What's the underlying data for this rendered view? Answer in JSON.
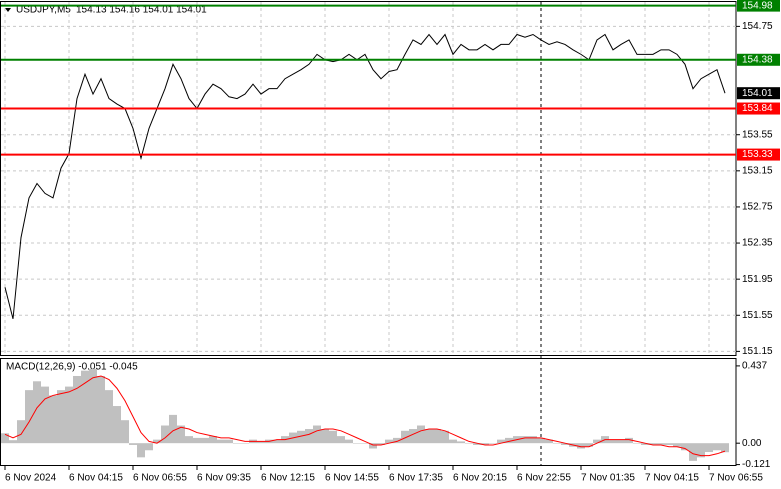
{
  "chart_data": [
    {
      "type": "line",
      "title": "USDJPY,M5",
      "subtitle": "154.13 154.16 154.01 154.01",
      "color": "#000000",
      "categories": [
        "6 Nov 2024",
        null,
        null,
        null,
        null,
        null,
        null,
        null,
        "6 Nov 04:15",
        null,
        null,
        null,
        null,
        null,
        null,
        null,
        "6 Nov 06:55",
        null,
        null,
        null,
        null,
        null,
        null,
        null,
        "6 Nov 09:35",
        null,
        null,
        null,
        null,
        null,
        null,
        null,
        "6 Nov 12:15",
        null,
        null,
        null,
        null,
        null,
        null,
        null,
        "6 Nov 14:55",
        null,
        null,
        null,
        null,
        null,
        null,
        null,
        "6 Nov 17:35",
        null,
        null,
        null,
        null,
        null,
        null,
        null,
        "6 Nov 20:15",
        null,
        null,
        null,
        null,
        null,
        null,
        null,
        "6 Nov 22:55",
        null,
        null,
        null,
        null,
        null,
        null,
        null,
        "7 Nov 01:35",
        null,
        null,
        null,
        null,
        null,
        null,
        null,
        "7 Nov 04:15",
        null,
        null,
        null,
        null,
        null,
        null,
        null,
        "7 Nov 06:55",
        null,
        null
      ],
      "values": [
        151.86,
        151.51,
        152.41,
        152.85,
        153.01,
        152.9,
        152.85,
        153.18,
        153.34,
        153.95,
        154.22,
        154.0,
        154.17,
        153.95,
        153.89,
        153.84,
        153.62,
        153.29,
        153.62,
        153.84,
        154.06,
        154.33,
        154.17,
        153.95,
        153.84,
        154.0,
        154.11,
        154.06,
        153.97,
        153.95,
        154.0,
        154.11,
        154.0,
        154.06,
        154.06,
        154.17,
        154.22,
        154.27,
        154.33,
        154.44,
        154.38,
        154.36,
        154.38,
        154.44,
        154.38,
        154.44,
        154.27,
        154.17,
        154.25,
        154.27,
        154.44,
        154.6,
        154.55,
        154.66,
        154.55,
        154.66,
        154.44,
        154.55,
        154.49,
        154.49,
        154.55,
        154.49,
        154.55,
        154.55,
        154.66,
        154.63,
        154.66,
        154.6,
        154.55,
        154.58,
        154.55,
        154.49,
        154.44,
        154.38,
        154.6,
        154.66,
        154.49,
        154.55,
        154.6,
        154.44,
        154.44,
        154.44,
        154.49,
        154.49,
        154.44,
        154.33,
        154.06,
        154.17,
        154.22,
        154.27,
        154.01
      ],
      "ylim": [
        151.11,
        155.02
      ],
      "yticks": [
        151.15,
        151.55,
        151.95,
        152.35,
        152.75,
        153.15,
        153.55,
        154.75
      ],
      "grid": true,
      "levels": [
        {
          "value": 154.98,
          "color": "#008000"
        },
        {
          "value": 154.38,
          "color": "#008000"
        },
        {
          "value": 153.84,
          "color": "#ff0000"
        },
        {
          "value": 153.33,
          "color": "#ff0000"
        }
      ],
      "current_price": {
        "value": 154.01,
        "color": "#000000"
      }
    },
    {
      "type": "macd",
      "title": "MACD(12,26,9) -0.051 -0.045",
      "histogram": {
        "color": "#c0c0c0",
        "values": [
          0.056,
          0.017,
          0.13,
          0.3,
          0.35,
          0.32,
          0.27,
          0.3,
          0.32,
          0.38,
          0.41,
          0.42,
          0.38,
          0.3,
          0.21,
          0.13,
          -0.01,
          -0.08,
          -0.04,
          0.02,
          0.1,
          0.16,
          0.1,
          0.04,
          0.03,
          0.03,
          0.04,
          0.02,
          0.02,
          0,
          0,
          0.02,
          0.01,
          0.02,
          0.02,
          0.04,
          0.06,
          0.07,
          0.08,
          0.1,
          0.08,
          0.07,
          0.04,
          0.02,
          0,
          0,
          -0.03,
          -0.01,
          0.02,
          0.03,
          0.07,
          0.08,
          0.1,
          0.08,
          0.08,
          0.07,
          0.02,
          0.01,
          0,
          -0.01,
          -0.01,
          0,
          0.02,
          0.03,
          0.04,
          0.04,
          0.04,
          0.03,
          0.02,
          0,
          -0.01,
          -0.02,
          -0.03,
          -0.02,
          0.02,
          0.04,
          0.02,
          0.02,
          0.03,
          0,
          -0.01,
          -0.01,
          -0.01,
          -0.01,
          -0.02,
          -0.04,
          -0.1,
          -0.08,
          -0.05,
          -0.04,
          -0.051
        ]
      },
      "signal": {
        "color": "#ff0000",
        "values": [
          0.05,
          0.03,
          0.05,
          0.12,
          0.2,
          0.25,
          0.27,
          0.28,
          0.29,
          0.31,
          0.34,
          0.37,
          0.38,
          0.36,
          0.31,
          0.24,
          0.15,
          0.06,
          0.01,
          0.0,
          0.03,
          0.07,
          0.09,
          0.08,
          0.06,
          0.05,
          0.04,
          0.03,
          0.03,
          0.02,
          0.01,
          0.01,
          0.01,
          0.01,
          0.02,
          0.02,
          0.03,
          0.04,
          0.05,
          0.07,
          0.08,
          0.08,
          0.07,
          0.05,
          0.03,
          0.01,
          -0.01,
          -0.01,
          0.0,
          0.01,
          0.03,
          0.05,
          0.07,
          0.08,
          0.08,
          0.07,
          0.05,
          0.03,
          0.01,
          0.0,
          -0.01,
          -0.01,
          0.0,
          0.01,
          0.02,
          0.03,
          0.03,
          0.03,
          0.02,
          0.01,
          0.0,
          -0.01,
          -0.02,
          -0.02,
          0.0,
          0.02,
          0.02,
          0.02,
          0.02,
          0.01,
          0.0,
          -0.01,
          -0.01,
          -0.02,
          -0.02,
          -0.03,
          -0.06,
          -0.07,
          -0.07,
          -0.06,
          -0.045
        ]
      },
      "ylim": [
        -0.129,
        0.476
      ],
      "yticks": [
        0.437,
        {
          "value": 0,
          "label": "0.00"
        },
        -0.121
      ]
    }
  ]
}
